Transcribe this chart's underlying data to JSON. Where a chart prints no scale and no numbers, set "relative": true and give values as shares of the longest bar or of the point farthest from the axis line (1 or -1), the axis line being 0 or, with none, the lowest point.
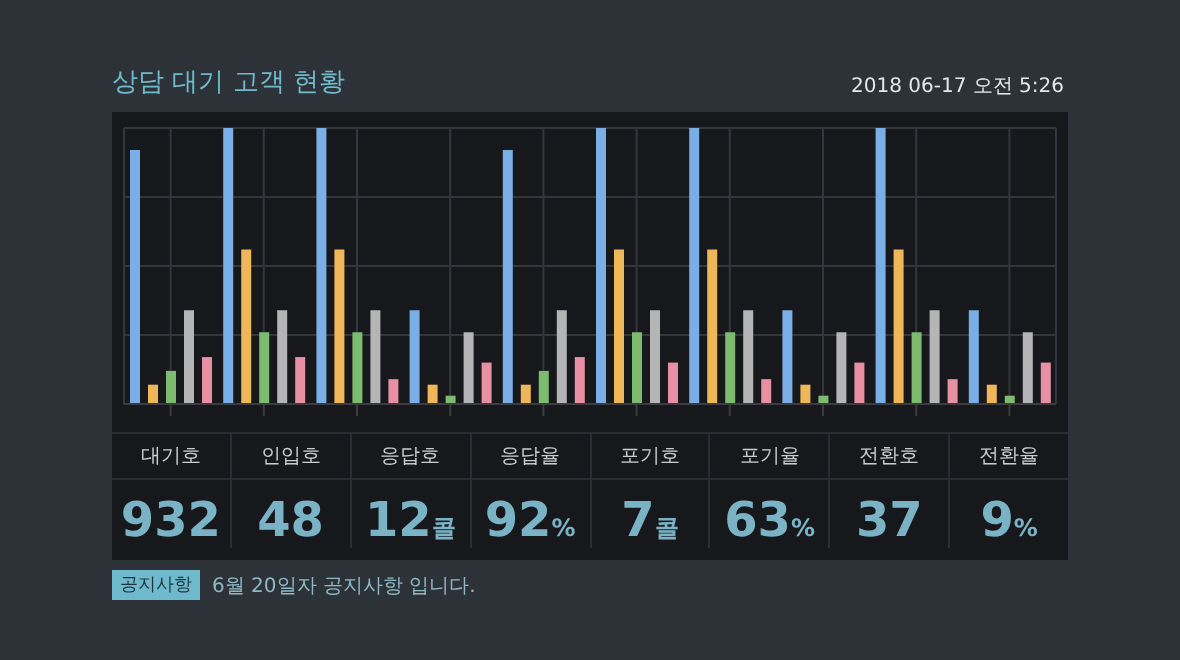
{
  "chart_data": {
    "type": "bar",
    "title": "상담 대기 고객 현황",
    "subtitle": "2018 06-17  오전 5:26",
    "relative": true,
    "grid": true,
    "legend": false,
    "categories": [
      null,
      null,
      null,
      null,
      null,
      null,
      null,
      null,
      null,
      null
    ],
    "series": [
      {
        "color": "#7aaee6",
        "values": [
          0.92,
          1,
          1,
          0.34,
          0.92,
          1,
          1,
          0.34,
          1,
          0.34
        ]
      },
      {
        "color": "#f0b65a",
        "values": [
          0.07,
          0.56,
          0.56,
          0.07,
          0.07,
          0.56,
          0.56,
          0.07,
          0.56,
          0.07
        ]
      },
      {
        "color": "#7dbb6f",
        "values": [
          0.12,
          0.26,
          0.26,
          0.03,
          0.12,
          0.26,
          0.26,
          0.03,
          0.26,
          0.03
        ]
      },
      {
        "color": "#b5b5b5",
        "values": [
          0.34,
          0.34,
          0.34,
          0.26,
          0.34,
          0.34,
          0.34,
          0.26,
          0.34,
          0.26
        ]
      },
      {
        "color": "#e98fa3",
        "values": [
          0.17,
          0.17,
          0.09,
          0.15,
          0.17,
          0.15,
          0.09,
          0.15,
          0.09,
          0.15
        ]
      }
    ],
    "annotations": [
      "대기호",
      "932",
      "인입호",
      "48",
      "응답호",
      "12콜",
      "응답율",
      "92%",
      "포기호",
      "7콜",
      "포기율",
      "63%",
      "전환호",
      "37",
      "전환율",
      "9%",
      "공지사항",
      "6월 20일자 공지사항 입니다."
    ]
  }
}
